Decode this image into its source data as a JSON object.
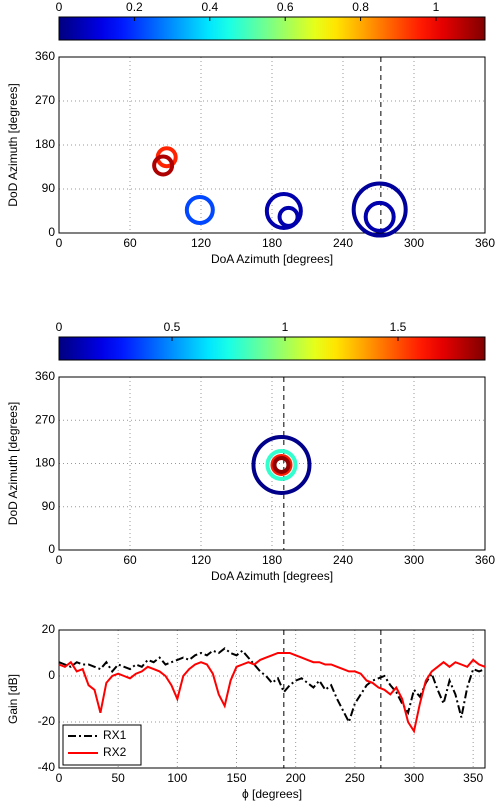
{
  "chart_data": [
    {
      "type": "scatter",
      "x_label": "DoA Azimuth [degrees]",
      "y_label": "DoD Azimuth [degrees]",
      "x": [
        91,
        88,
        119,
        190,
        194,
        271,
        271
      ],
      "y": [
        155,
        138,
        47,
        45,
        33,
        48,
        33
      ],
      "sizes": [
        9,
        9,
        13,
        17,
        9,
        26,
        14
      ],
      "color_values": [
        0.95,
        1.08,
        0.22,
        0.05,
        0.05,
        0.03,
        0.05
      ],
      "colormap": "jet",
      "clim": [
        0,
        1.13
      ],
      "cticks": [
        0,
        0.2,
        0.4,
        0.6,
        0.8,
        1
      ],
      "xlim": [
        0,
        360
      ],
      "xticks": [
        0,
        60,
        120,
        180,
        240,
        300,
        360
      ],
      "ylim": [
        0,
        360
      ],
      "yticks": [
        0,
        90,
        180,
        270,
        360
      ],
      "vlines": [
        272
      ],
      "grid": true
    },
    {
      "type": "scatter",
      "x_label": "DoA Azimuth [degrees]",
      "y_label": "DoD Azimuth [degrees]",
      "x": [
        188,
        188,
        188,
        188
      ],
      "y": [
        177,
        177,
        177,
        177
      ],
      "sizes": [
        28,
        14,
        9,
        7
      ],
      "color_values": [
        0.02,
        0.8,
        1.6,
        1.85
      ],
      "colormap": "jet",
      "clim": [
        0,
        1.885
      ],
      "cticks": [
        0,
        0.5,
        1,
        1.5
      ],
      "xlim": [
        0,
        360
      ],
      "xticks": [
        0,
        60,
        120,
        180,
        240,
        300,
        360
      ],
      "ylim": [
        0,
        360
      ],
      "yticks": [
        0,
        90,
        180,
        270,
        360
      ],
      "vlines": [
        190
      ],
      "grid": true
    },
    {
      "type": "line",
      "x_label": "ϕ [degrees]",
      "y_label": "Gain [dB]",
      "x": [
        0,
        5,
        10,
        15,
        20,
        25,
        30,
        35,
        40,
        45,
        50,
        55,
        60,
        65,
        70,
        75,
        80,
        85,
        90,
        95,
        100,
        105,
        110,
        115,
        120,
        125,
        130,
        135,
        140,
        145,
        150,
        155,
        160,
        165,
        170,
        175,
        180,
        185,
        190,
        195,
        200,
        205,
        210,
        215,
        220,
        225,
        230,
        235,
        240,
        245,
        250,
        255,
        260,
        265,
        270,
        275,
        280,
        285,
        290,
        295,
        300,
        305,
        310,
        315,
        320,
        325,
        330,
        335,
        340,
        345,
        350,
        355,
        360
      ],
      "series": [
        {
          "name": "RX1",
          "color": "#000000",
          "line_style": "-.",
          "values": [
            6,
            5,
            4,
            6,
            5,
            5,
            4,
            3,
            6,
            2,
            5,
            4,
            3,
            5,
            4,
            7,
            6,
            8,
            5,
            6,
            7,
            8,
            7,
            9,
            10,
            9,
            11,
            10,
            12,
            10,
            9,
            11,
            8,
            5,
            2,
            0,
            -3,
            -1,
            -7,
            -4,
            -2,
            -1,
            -3,
            -5,
            -2,
            -6,
            -4,
            -10,
            -15,
            -20,
            -12,
            -8,
            -4,
            -2,
            -1,
            0,
            -4,
            -7,
            -12,
            -16,
            -6,
            -9,
            -3,
            1,
            -6,
            -12,
            -2,
            -8,
            -18,
            -5,
            3,
            2,
            3
          ]
        },
        {
          "name": "RX2",
          "color": "#ff0000",
          "line_style": "-",
          "values": [
            5,
            4,
            6,
            2,
            3,
            -4,
            -6,
            -16,
            -3,
            0,
            1,
            0,
            -1,
            1,
            2,
            4,
            3,
            2,
            0,
            -4,
            -10,
            0,
            3,
            5,
            6,
            5,
            1,
            -8,
            -13,
            -2,
            4,
            5,
            6,
            5,
            7,
            8,
            9,
            10,
            10,
            10,
            9,
            8,
            7,
            6,
            6,
            5,
            5,
            4,
            3,
            2,
            2,
            1,
            -2,
            -3,
            -5,
            -6,
            -8,
            -5,
            -10,
            -20,
            -24,
            -12,
            -2,
            2,
            4,
            6,
            4,
            6,
            5,
            4,
            7,
            5,
            4
          ]
        }
      ],
      "xlim": [
        0,
        360
      ],
      "xticks": [
        0,
        50,
        100,
        150,
        200,
        250,
        300,
        350
      ],
      "ylim": [
        -40,
        20
      ],
      "yticks": [
        -40,
        -20,
        0,
        20
      ],
      "vlines": [
        190,
        272
      ],
      "grid": true,
      "legend": "lower left"
    }
  ]
}
